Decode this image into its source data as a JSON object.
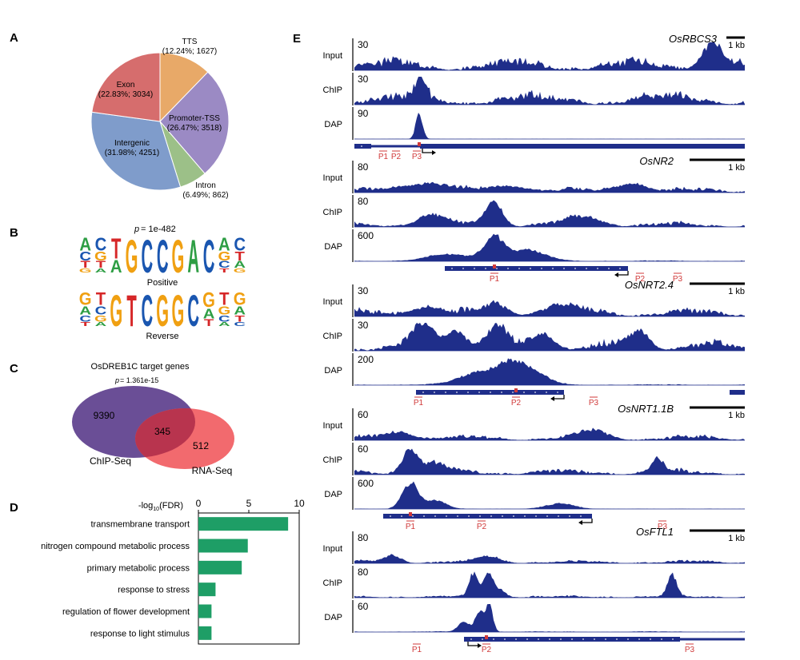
{
  "panels": {
    "A": {
      "letter": "A",
      "chart_title": "",
      "slices": [
        {
          "name": "TTS",
          "pct_label": "(12.24%; 1627)",
          "percent": 12.24,
          "count": 1627,
          "color": "#E8A968"
        },
        {
          "name": "Promoter-TSS",
          "pct_label": "(26.47%; 3518)",
          "percent": 26.47,
          "count": 3518,
          "color": "#9B8AC4"
        },
        {
          "name": "Intron",
          "pct_label": "(6.49%; 862)",
          "percent": 6.49,
          "count": 862,
          "color": "#9CC088"
        },
        {
          "name": "Intergenic",
          "pct_label": "(31.98%; 4251)",
          "percent": 31.98,
          "count": 4251,
          "color": "#7F9CCB"
        },
        {
          "name": "Exon",
          "pct_label": "(22.83%; 3034)",
          "percent": 22.83,
          "count": 3034,
          "color": "#D66D6D"
        }
      ]
    },
    "B": {
      "letter": "B",
      "p_label": "p",
      "p_value": " = 1e-482",
      "motifs": [
        {
          "caption": "Positive",
          "columns": [
            [
              [
                "A",
                "#2E9E44"
              ],
              [
                "C",
                "#1A56B0"
              ],
              [
                "T",
                "#D62728"
              ],
              [
                "G",
                "#F0A012"
              ]
            ],
            [
              [
                "C",
                "#1A56B0"
              ],
              [
                "G",
                "#F0A012"
              ],
              [
                "T",
                "#D62728"
              ],
              [
                "A",
                "#2E9E44"
              ]
            ],
            [
              [
                "T",
                "#D62728"
              ],
              [
                "A",
                "#2E9E44"
              ]
            ],
            [
              [
                "G",
                "#F0A012"
              ]
            ],
            [
              [
                "C",
                "#1A56B0"
              ]
            ],
            [
              [
                "C",
                "#1A56B0"
              ]
            ],
            [
              [
                "G",
                "#F0A012"
              ]
            ],
            [
              [
                "A",
                "#2E9E44"
              ]
            ],
            [
              [
                "C",
                "#1A56B0"
              ]
            ],
            [
              [
                "A",
                "#2E9E44"
              ],
              [
                "G",
                "#F0A012"
              ],
              [
                "C",
                "#1A56B0"
              ],
              [
                "T",
                "#D62728"
              ]
            ],
            [
              [
                "C",
                "#1A56B0"
              ],
              [
                "T",
                "#D62728"
              ],
              [
                "A",
                "#2E9E44"
              ],
              [
                "G",
                "#F0A012"
              ]
            ]
          ]
        },
        {
          "caption": "Reverse",
          "columns": [
            [
              [
                "G",
                "#F0A012"
              ],
              [
                "A",
                "#2E9E44"
              ],
              [
                "C",
                "#1A56B0"
              ],
              [
                "T",
                "#D62728"
              ]
            ],
            [
              [
                "T",
                "#D62728"
              ],
              [
                "C",
                "#1A56B0"
              ],
              [
                "G",
                "#F0A012"
              ],
              [
                "A",
                "#2E9E44"
              ]
            ],
            [
              [
                "G",
                "#F0A012"
              ]
            ],
            [
              [
                "T",
                "#D62728"
              ]
            ],
            [
              [
                "C",
                "#1A56B0"
              ]
            ],
            [
              [
                "G",
                "#F0A012"
              ]
            ],
            [
              [
                "G",
                "#F0A012"
              ]
            ],
            [
              [
                "C",
                "#1A56B0"
              ]
            ],
            [
              [
                "G",
                "#F0A012"
              ],
              [
                "A",
                "#2E9E44"
              ],
              [
                "T",
                "#D62728"
              ]
            ],
            [
              [
                "T",
                "#D62728"
              ],
              [
                "G",
                "#F0A012"
              ],
              [
                "C",
                "#1A56B0"
              ],
              [
                "A",
                "#2E9E44"
              ]
            ],
            [
              [
                "G",
                "#F0A012"
              ],
              [
                "A",
                "#2E9E44"
              ],
              [
                "T",
                "#D62728"
              ],
              [
                "C",
                "#1A56B0"
              ]
            ]
          ]
        }
      ]
    },
    "C": {
      "letter": "C",
      "title": "OsDREB1C target genes",
      "p_label": "p",
      "p_value": " = 1.361e-15",
      "left_only": "9390",
      "overlap": "345",
      "right_only": "512",
      "left_name": "ChIP-Seq",
      "right_name": "RNA-Seq",
      "left_color": "#6A4E96",
      "right_color": "#F26A6E",
      "overlap_color": "#B8344E"
    },
    "D": {
      "letter": "D",
      "axis_label_prefix": "-log",
      "axis_label_sub": "10",
      "axis_label_suffix": "(FDR)",
      "bar_color": "#1E9E66"
    },
    "E": {
      "letter": "E",
      "row_labels": [
        "Input",
        "ChIP",
        "DAP"
      ]
    }
  },
  "chart_data": [
    {
      "type": "pie",
      "title": "",
      "categories": [
        "TTS",
        "Promoter-TSS",
        "Intron",
        "Intergenic",
        "Exon"
      ],
      "values": [
        12.24,
        26.47,
        6.49,
        31.98,
        22.83
      ],
      "counts": [
        1627,
        3518,
        862,
        4251,
        3034
      ]
    },
    {
      "type": "bar",
      "orientation": "horizontal",
      "title": "",
      "categories": [
        "transmembrane transport",
        "nitrogen compound metabolic process",
        "primary metabolic process",
        "response to stress",
        "regulation of flower development",
        "response to light stimulus"
      ],
      "values": [
        8.9,
        4.9,
        4.3,
        1.7,
        1.3,
        1.3
      ],
      "xlim": [
        0,
        10
      ],
      "xticks": [
        "0",
        "5",
        "10"
      ],
      "xlabel": "-log10(FDR)"
    }
  ],
  "tracks": [
    {
      "gene": "OsRBCS3",
      "scale_label": "1 kb",
      "max_values": [
        "30",
        "30",
        "90"
      ],
      "peak_labels": [
        "P1",
        "P2",
        "P3"
      ]
    },
    {
      "gene": "OsNR2",
      "scale_label": "1 kb",
      "max_values": [
        "80",
        "80",
        "600"
      ],
      "peak_labels": [
        "P1",
        "P2",
        "P3"
      ]
    },
    {
      "gene": "OsNRT2.4",
      "scale_label": "1 kb",
      "max_values": [
        "30",
        "30",
        "200"
      ],
      "peak_labels": [
        "P1",
        "P2",
        "P3"
      ]
    },
    {
      "gene": "OsNRT1.1B",
      "scale_label": "1 kb",
      "max_values": [
        "60",
        "60",
        "600"
      ],
      "peak_labels": [
        "P1",
        "P2",
        "P3"
      ]
    },
    {
      "gene": "OsFTL1",
      "scale_label": "1 kb",
      "max_values": [
        "80",
        "80",
        "60"
      ],
      "peak_labels": [
        "P1",
        "P2",
        "P3"
      ]
    }
  ],
  "colors": {
    "track": "#1F2E8A",
    "probe": "#D03A3A",
    "axis": "#000000"
  }
}
